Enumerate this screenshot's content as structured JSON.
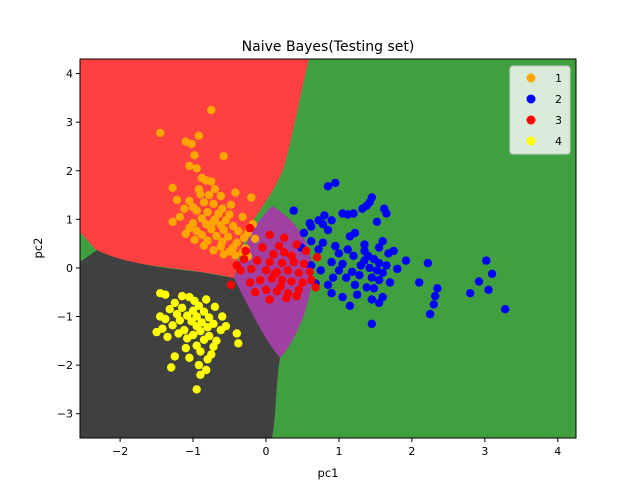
{
  "chart_data": {
    "type": "scatter",
    "title": "Naive Bayes(Testing set)",
    "xlabel": "pc1",
    "ylabel": "pc2",
    "xlim": [
      -2.55,
      4.25
    ],
    "ylim": [
      -3.5,
      4.3
    ],
    "xticks": [
      -2,
      -1,
      0,
      1,
      2,
      3,
      4
    ],
    "yticks": [
      -3,
      -2,
      -1,
      0,
      1,
      2,
      3,
      4
    ],
    "legend_position": "top-right",
    "regions": [
      {
        "class": "1",
        "color": "#ff4040",
        "shape": "upper-left wedge"
      },
      {
        "class": "2",
        "color": "#40a040",
        "shape": "background right"
      },
      {
        "class": "3",
        "color": "#a040a0",
        "shape": "central lens"
      },
      {
        "class": "4",
        "color": "#404040",
        "shape": "lower-left"
      }
    ],
    "series": [
      {
        "name": "1",
        "color": "#ffa500",
        "points": [
          [
            -0.75,
            3.25
          ],
          [
            -1.45,
            2.78
          ],
          [
            -0.92,
            2.72
          ],
          [
            -1.1,
            2.6
          ],
          [
            -1.02,
            2.55
          ],
          [
            -0.98,
            2.32
          ],
          [
            -0.58,
            2.3
          ],
          [
            -1.05,
            2.1
          ],
          [
            -0.95,
            2.05
          ],
          [
            -0.88,
            1.85
          ],
          [
            -0.82,
            1.8
          ],
          [
            -0.75,
            1.78
          ],
          [
            -1.28,
            1.65
          ],
          [
            -0.92,
            1.62
          ],
          [
            -0.7,
            1.62
          ],
          [
            -0.42,
            1.55
          ],
          [
            -0.9,
            1.52
          ],
          [
            -0.78,
            1.5
          ],
          [
            -0.62,
            1.48
          ],
          [
            -0.2,
            1.45
          ],
          [
            -1.22,
            1.4
          ],
          [
            -1.05,
            1.38
          ],
          [
            -0.85,
            1.35
          ],
          [
            -0.72,
            1.32
          ],
          [
            -0.48,
            1.3
          ],
          [
            -1.12,
            1.22
          ],
          [
            -0.95,
            1.18
          ],
          [
            -0.8,
            1.15
          ],
          [
            -0.65,
            1.12
          ],
          [
            -0.5,
            1.1
          ],
          [
            -1.18,
            1.05
          ],
          [
            -0.88,
            1.02
          ],
          [
            -0.7,
            1.0
          ],
          [
            -0.55,
            0.98
          ],
          [
            -0.32,
            1.05
          ],
          [
            -1.28,
            0.95
          ],
          [
            -1.0,
            0.92
          ],
          [
            -0.82,
            0.9
          ],
          [
            -0.62,
            0.88
          ],
          [
            -0.45,
            0.86
          ],
          [
            -1.05,
            0.82
          ],
          [
            -0.75,
            0.8
          ],
          [
            -0.58,
            0.78
          ],
          [
            -0.38,
            0.76
          ],
          [
            -0.25,
            0.72
          ],
          [
            -1.1,
            0.7
          ],
          [
            -0.88,
            0.68
          ],
          [
            -0.68,
            0.66
          ],
          [
            -0.52,
            0.64
          ],
          [
            -0.3,
            0.62
          ],
          [
            -0.15,
            0.6
          ],
          [
            -0.98,
            0.58
          ],
          [
            -0.8,
            0.56
          ],
          [
            -0.6,
            0.54
          ],
          [
            -0.4,
            0.52
          ],
          [
            -0.85,
            0.46
          ],
          [
            -0.62,
            0.44
          ],
          [
            -0.45,
            0.42
          ],
          [
            -0.28,
            0.4
          ],
          [
            -0.72,
            0.36
          ],
          [
            -0.5,
            0.34
          ],
          [
            -0.32,
            0.32
          ],
          [
            -0.58,
            0.28
          ],
          [
            -0.42,
            0.26
          ],
          [
            -0.25,
            0.24
          ],
          [
            -0.95,
            0.76
          ],
          [
            -0.72,
            0.95
          ],
          [
            -0.6,
            1.22
          ],
          [
            -1.0,
            1.25
          ],
          [
            -0.18,
            0.9
          ]
        ]
      },
      {
        "name": "2",
        "color": "#0000ff",
        "points": [
          [
            0.85,
            1.68
          ],
          [
            0.95,
            1.75
          ],
          [
            1.45,
            1.45
          ],
          [
            1.42,
            1.35
          ],
          [
            1.38,
            1.28
          ],
          [
            1.32,
            1.22
          ],
          [
            1.62,
            1.22
          ],
          [
            1.65,
            1.12
          ],
          [
            1.05,
            1.12
          ],
          [
            1.2,
            1.12
          ],
          [
            1.12,
            1.1
          ],
          [
            0.8,
            1.08
          ],
          [
            0.38,
            1.18
          ],
          [
            0.72,
            0.98
          ],
          [
            0.9,
            0.98
          ],
          [
            1.52,
            0.95
          ],
          [
            0.6,
            0.92
          ],
          [
            0.78,
            0.9
          ],
          [
            0.62,
            0.85
          ],
          [
            0.85,
            0.78
          ],
          [
            0.52,
            0.72
          ],
          [
            1.15,
            0.65
          ],
          [
            0.62,
            0.55
          ],
          [
            0.78,
            0.52
          ],
          [
            0.95,
            0.45
          ],
          [
            0.48,
            0.42
          ],
          [
            0.72,
            0.38
          ],
          [
            1.35,
            0.35
          ],
          [
            1.12,
            0.38
          ],
          [
            1.55,
            0.42
          ],
          [
            1.68,
            0.3
          ],
          [
            1.75,
            0.35
          ],
          [
            1.92,
            0.15
          ],
          [
            2.22,
            0.1
          ],
          [
            1.2,
            0.25
          ],
          [
            1.4,
            0.25
          ],
          [
            1.48,
            0.18
          ],
          [
            1.55,
            0.1
          ],
          [
            1.65,
            0.05
          ],
          [
            1.8,
            -0.02
          ],
          [
            1.35,
            0.15
          ],
          [
            1.3,
            0.05
          ],
          [
            1.42,
            0.0
          ],
          [
            1.52,
            -0.05
          ],
          [
            1.6,
            -0.1
          ],
          [
            0.9,
            0.12
          ],
          [
            1.05,
            0.08
          ],
          [
            1.0,
            -0.05
          ],
          [
            1.18,
            -0.08
          ],
          [
            1.28,
            -0.15
          ],
          [
            0.62,
            0.05
          ],
          [
            0.75,
            -0.05
          ],
          [
            0.92,
            -0.2
          ],
          [
            1.1,
            -0.2
          ],
          [
            1.45,
            -0.2
          ],
          [
            1.55,
            -0.25
          ],
          [
            1.7,
            -0.3
          ],
          [
            2.1,
            -0.3
          ],
          [
            0.68,
            -0.32
          ],
          [
            0.85,
            -0.35
          ],
          [
            1.22,
            -0.35
          ],
          [
            1.38,
            -0.4
          ],
          [
            1.48,
            -0.42
          ],
          [
            0.9,
            -0.52
          ],
          [
            1.05,
            -0.6
          ],
          [
            1.45,
            -0.65
          ],
          [
            1.55,
            -0.72
          ],
          [
            1.6,
            -0.6
          ],
          [
            1.15,
            -0.78
          ],
          [
            2.32,
            -0.58
          ],
          [
            2.35,
            -0.42
          ],
          [
            2.3,
            -0.75
          ],
          [
            2.25,
            -0.95
          ],
          [
            1.45,
            -1.15
          ],
          [
            3.02,
            0.15
          ],
          [
            3.1,
            -0.12
          ],
          [
            2.92,
            -0.28
          ],
          [
            3.05,
            -0.45
          ],
          [
            2.8,
            -0.52
          ],
          [
            3.28,
            -0.85
          ],
          [
            1.22,
            0.72
          ],
          [
            1.35,
            0.48
          ],
          [
            1.0,
            0.3
          ],
          [
            1.6,
            0.55
          ],
          [
            1.25,
            -0.55
          ]
        ]
      },
      {
        "name": "3",
        "color": "#ff0000",
        "points": [
          [
            -0.22,
            0.82
          ],
          [
            0.05,
            0.68
          ],
          [
            0.25,
            0.62
          ],
          [
            -0.05,
            0.42
          ],
          [
            0.18,
            0.45
          ],
          [
            0.42,
            0.48
          ],
          [
            0.7,
            0.22
          ],
          [
            0.55,
            0.35
          ],
          [
            -0.3,
            0.18
          ],
          [
            -0.12,
            0.15
          ],
          [
            0.05,
            0.12
          ],
          [
            0.22,
            0.1
          ],
          [
            0.38,
            0.12
          ],
          [
            0.52,
            0.08
          ],
          [
            -0.35,
            -0.05
          ],
          [
            -0.2,
            -0.02
          ],
          [
            0.0,
            -0.05
          ],
          [
            0.15,
            -0.08
          ],
          [
            0.3,
            -0.05
          ],
          [
            0.45,
            -0.1
          ],
          [
            0.6,
            -0.08
          ],
          [
            -0.48,
            -0.35
          ],
          [
            -0.22,
            -0.3
          ],
          [
            -0.08,
            -0.25
          ],
          [
            0.08,
            -0.22
          ],
          [
            0.22,
            -0.25
          ],
          [
            0.35,
            -0.28
          ],
          [
            0.5,
            -0.3
          ],
          [
            0.62,
            -0.25
          ],
          [
            -0.15,
            -0.5
          ],
          [
            0.0,
            -0.45
          ],
          [
            0.15,
            -0.48
          ],
          [
            0.3,
            -0.52
          ],
          [
            0.42,
            -0.58
          ],
          [
            0.05,
            -0.65
          ],
          [
            0.28,
            -0.62
          ],
          [
            0.2,
            -0.38
          ],
          [
            0.1,
            0.28
          ],
          [
            -0.28,
            0.35
          ],
          [
            0.35,
            0.25
          ],
          [
            0.68,
            -0.4
          ],
          [
            -0.4,
            0.05
          ],
          [
            0.12,
            -0.12
          ],
          [
            0.25,
            0.32
          ],
          [
            0.45,
            -0.45
          ]
        ]
      },
      {
        "name": "4",
        "color": "#ffff00",
        "points": [
          [
            -1.45,
            -0.52
          ],
          [
            -1.38,
            -0.55
          ],
          [
            -1.05,
            -0.6
          ],
          [
            -0.82,
            -0.65
          ],
          [
            -0.98,
            -0.68
          ],
          [
            -1.25,
            -0.72
          ],
          [
            -0.92,
            -0.78
          ],
          [
            -0.7,
            -0.8
          ],
          [
            -1.15,
            -0.82
          ],
          [
            -1.32,
            -0.85
          ],
          [
            -1.0,
            -0.88
          ],
          [
            -0.85,
            -0.9
          ],
          [
            -1.22,
            -0.95
          ],
          [
            -1.08,
            -0.98
          ],
          [
            -0.95,
            -1.0
          ],
          [
            -0.78,
            -1.02
          ],
          [
            -1.38,
            -1.05
          ],
          [
            -1.18,
            -1.08
          ],
          [
            -1.02,
            -1.1
          ],
          [
            -0.88,
            -1.12
          ],
          [
            -0.72,
            -1.15
          ],
          [
            -1.28,
            -1.18
          ],
          [
            -0.95,
            -1.2
          ],
          [
            -0.8,
            -1.22
          ],
          [
            -0.55,
            -1.2
          ],
          [
            -1.42,
            -1.25
          ],
          [
            -1.12,
            -1.28
          ],
          [
            -0.9,
            -1.3
          ],
          [
            -0.62,
            -1.28
          ],
          [
            -1.5,
            -1.32
          ],
          [
            -1.2,
            -1.35
          ],
          [
            -1.0,
            -1.38
          ],
          [
            -0.78,
            -1.4
          ],
          [
            -0.4,
            -1.35
          ],
          [
            -1.35,
            -1.42
          ],
          [
            -1.08,
            -1.45
          ],
          [
            -0.85,
            -1.48
          ],
          [
            -0.95,
            -1.6
          ],
          [
            -0.72,
            -1.62
          ],
          [
            -0.38,
            -1.55
          ],
          [
            -1.1,
            -1.65
          ],
          [
            -0.9,
            -1.72
          ],
          [
            -0.75,
            -1.78
          ],
          [
            -1.25,
            -1.82
          ],
          [
            -1.05,
            -1.85
          ],
          [
            -0.8,
            -1.88
          ],
          [
            -0.92,
            -2.0
          ],
          [
            -1.3,
            -2.05
          ],
          [
            -0.82,
            -2.1
          ],
          [
            -0.9,
            -2.2
          ],
          [
            -0.95,
            -2.5
          ],
          [
            -1.15,
            -0.58
          ],
          [
            -0.6,
            -1.0
          ],
          [
            -1.45,
            -1.0
          ],
          [
            -0.68,
            -1.5
          ]
        ]
      }
    ]
  }
}
